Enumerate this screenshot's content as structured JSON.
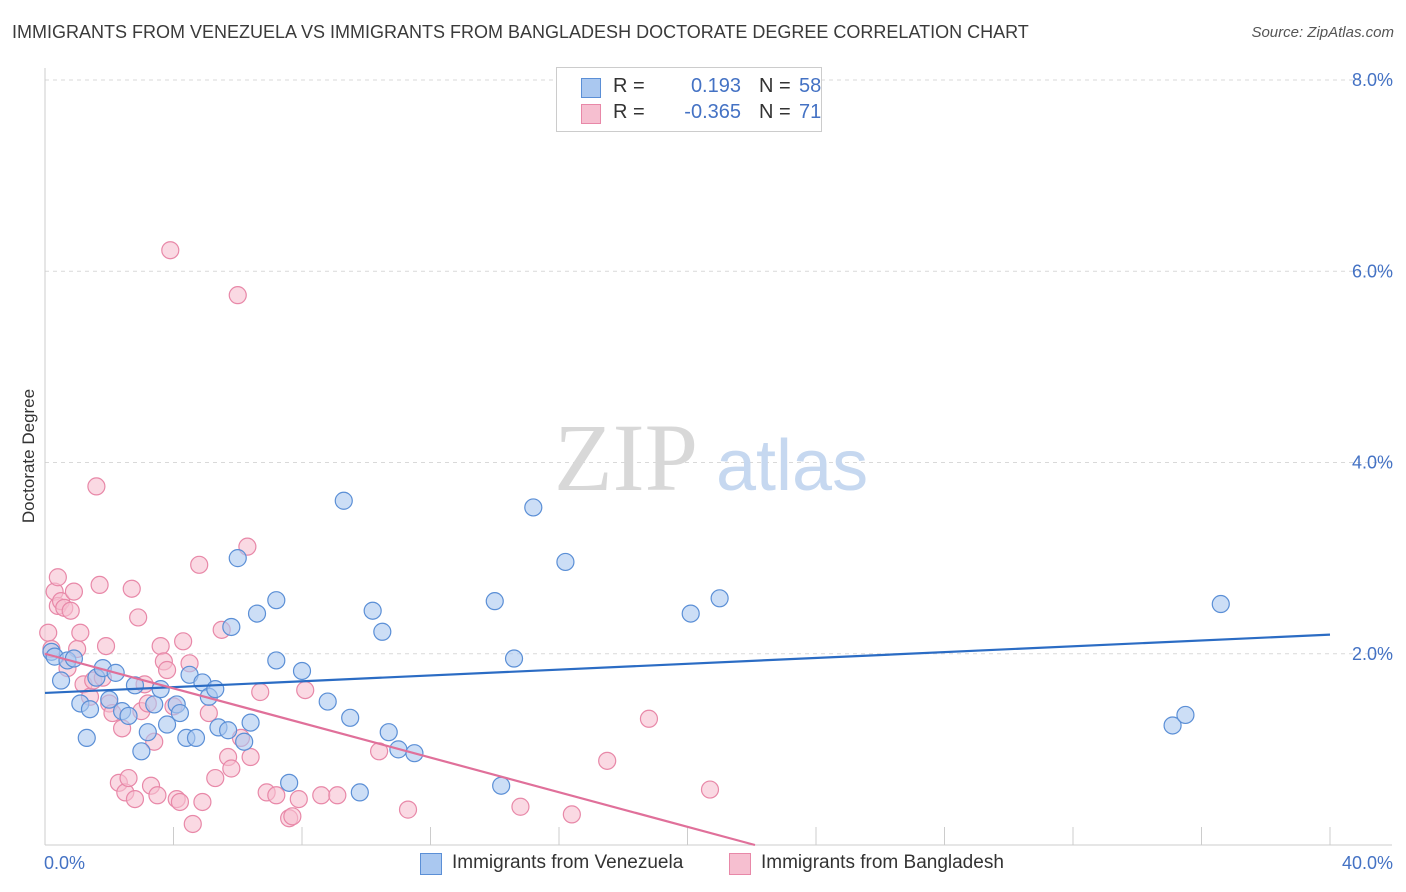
{
  "title": "IMMIGRANTS FROM VENEZUELA VS IMMIGRANTS FROM BANGLADESH DOCTORATE DEGREE CORRELATION CHART",
  "source": "Source: ZipAtlas.com",
  "watermark": {
    "zip": "ZIP",
    "atlas": "atlas"
  },
  "legend": {
    "rows": [
      {
        "r_label": "R =",
        "r_value": "0.193",
        "n_label": "N =",
        "n_value": "58"
      },
      {
        "r_label": "R =",
        "r_value": "-0.365",
        "n_label": "N =",
        "n_value": "71"
      }
    ]
  },
  "colors": {
    "venezuela_fill": "#aac8f0",
    "venezuela_stroke": "#5b8fd6",
    "venezuela_line": "#2b6cc4",
    "bangladesh_fill": "#f6bfd0",
    "bangladesh_stroke": "#e888a8",
    "bangladesh_line": "#e0709a",
    "tick_text": "#4472c4",
    "grid": "#d9d9d9"
  },
  "chart_data": {
    "type": "scatter",
    "title": "IMMIGRANTS FROM VENEZUELA VS IMMIGRANTS FROM BANGLADESH DOCTORATE DEGREE CORRELATION CHART",
    "xlabel": "",
    "ylabel": "Doctorate Degree",
    "xlim": [
      0,
      40
    ],
    "ylim": [
      0,
      8
    ],
    "x_tick_labels": [
      "0.0%",
      "40.0%"
    ],
    "y_ticks": [
      2,
      4,
      6,
      8
    ],
    "y_tick_labels": [
      "2.0%",
      "4.0%",
      "6.0%",
      "8.0%"
    ],
    "grid": "horizontal dashed",
    "legend_placement": "top-center",
    "series": [
      {
        "name": "Immigrants from Venezuela",
        "trend": [
          [
            0,
            1.59
          ],
          [
            40,
            2.2
          ]
        ],
        "points": [
          [
            0.2,
            2.02
          ],
          [
            0.3,
            1.97
          ],
          [
            0.5,
            1.72
          ],
          [
            0.7,
            1.93
          ],
          [
            0.9,
            1.95
          ],
          [
            1.1,
            1.48
          ],
          [
            1.3,
            1.12
          ],
          [
            1.4,
            1.42
          ],
          [
            1.6,
            1.75
          ],
          [
            1.8,
            1.85
          ],
          [
            2.0,
            1.52
          ],
          [
            2.2,
            1.8
          ],
          [
            2.4,
            1.4
          ],
          [
            2.6,
            1.35
          ],
          [
            2.8,
            1.67
          ],
          [
            3.0,
            0.98
          ],
          [
            3.2,
            1.18
          ],
          [
            3.4,
            1.47
          ],
          [
            3.6,
            1.63
          ],
          [
            3.8,
            1.26
          ],
          [
            4.1,
            1.47
          ],
          [
            4.2,
            1.38
          ],
          [
            4.4,
            1.12
          ],
          [
            4.5,
            1.78
          ],
          [
            4.7,
            1.12
          ],
          [
            4.9,
            1.7
          ],
          [
            5.1,
            1.55
          ],
          [
            5.3,
            1.63
          ],
          [
            5.4,
            1.23
          ],
          [
            5.7,
            1.2
          ],
          [
            5.8,
            2.28
          ],
          [
            6.0,
            3.0
          ],
          [
            6.2,
            1.08
          ],
          [
            6.4,
            1.28
          ],
          [
            6.6,
            2.42
          ],
          [
            7.2,
            2.56
          ],
          [
            7.2,
            1.93
          ],
          [
            7.6,
            0.65
          ],
          [
            8.0,
            1.82
          ],
          [
            8.8,
            1.5
          ],
          [
            9.3,
            3.6
          ],
          [
            9.5,
            1.33
          ],
          [
            9.8,
            0.55
          ],
          [
            10.2,
            2.45
          ],
          [
            10.5,
            2.23
          ],
          [
            10.7,
            1.18
          ],
          [
            11.0,
            1.0
          ],
          [
            11.5,
            0.96
          ],
          [
            14.0,
            2.55
          ],
          [
            14.2,
            0.62
          ],
          [
            14.6,
            1.95
          ],
          [
            15.2,
            3.53
          ],
          [
            16.2,
            2.96
          ],
          [
            20.1,
            2.42
          ],
          [
            21.0,
            2.58
          ],
          [
            35.1,
            1.25
          ],
          [
            35.5,
            1.36
          ],
          [
            36.6,
            2.52
          ]
        ]
      },
      {
        "name": "Immigrants from Bangladesh",
        "trend": [
          [
            0,
            2.0
          ],
          [
            22.1,
            0
          ]
        ],
        "points": [
          [
            0.1,
            2.22
          ],
          [
            0.2,
            2.05
          ],
          [
            0.3,
            2.65
          ],
          [
            0.4,
            2.5
          ],
          [
            0.4,
            2.8
          ],
          [
            0.5,
            2.55
          ],
          [
            0.6,
            2.48
          ],
          [
            0.7,
            1.85
          ],
          [
            0.8,
            2.45
          ],
          [
            0.9,
            2.65
          ],
          [
            1.0,
            2.05
          ],
          [
            1.1,
            2.22
          ],
          [
            1.2,
            1.68
          ],
          [
            1.4,
            1.55
          ],
          [
            1.5,
            1.72
          ],
          [
            1.6,
            3.75
          ],
          [
            1.7,
            2.72
          ],
          [
            1.8,
            1.75
          ],
          [
            1.9,
            2.08
          ],
          [
            2.0,
            1.48
          ],
          [
            2.1,
            1.38
          ],
          [
            2.3,
            0.65
          ],
          [
            2.4,
            1.22
          ],
          [
            2.5,
            0.55
          ],
          [
            2.6,
            0.7
          ],
          [
            2.7,
            2.68
          ],
          [
            2.8,
            0.48
          ],
          [
            2.9,
            2.38
          ],
          [
            3.0,
            1.4
          ],
          [
            3.1,
            1.68
          ],
          [
            3.2,
            1.48
          ],
          [
            3.3,
            0.62
          ],
          [
            3.4,
            1.08
          ],
          [
            3.5,
            0.52
          ],
          [
            3.6,
            2.08
          ],
          [
            3.7,
            1.92
          ],
          [
            3.8,
            1.83
          ],
          [
            3.9,
            6.22
          ],
          [
            4.0,
            1.45
          ],
          [
            4.1,
            0.48
          ],
          [
            4.2,
            0.45
          ],
          [
            4.3,
            2.13
          ],
          [
            4.5,
            1.9
          ],
          [
            4.6,
            0.22
          ],
          [
            4.8,
            2.93
          ],
          [
            4.9,
            0.45
          ],
          [
            5.1,
            1.38
          ],
          [
            5.3,
            0.7
          ],
          [
            5.5,
            2.25
          ],
          [
            5.7,
            0.92
          ],
          [
            5.8,
            0.8
          ],
          [
            6.0,
            5.75
          ],
          [
            6.1,
            1.12
          ],
          [
            6.3,
            3.12
          ],
          [
            6.4,
            0.92
          ],
          [
            6.7,
            1.6
          ],
          [
            6.9,
            0.55
          ],
          [
            7.2,
            0.52
          ],
          [
            7.6,
            0.28
          ],
          [
            7.7,
            0.3
          ],
          [
            7.9,
            0.48
          ],
          [
            8.1,
            1.62
          ],
          [
            8.6,
            0.52
          ],
          [
            9.1,
            0.52
          ],
          [
            10.4,
            0.98
          ],
          [
            11.3,
            0.37
          ],
          [
            14.8,
            0.4
          ],
          [
            16.4,
            0.32
          ],
          [
            17.5,
            0.88
          ],
          [
            18.8,
            1.32
          ],
          [
            20.7,
            0.58
          ]
        ]
      }
    ]
  }
}
